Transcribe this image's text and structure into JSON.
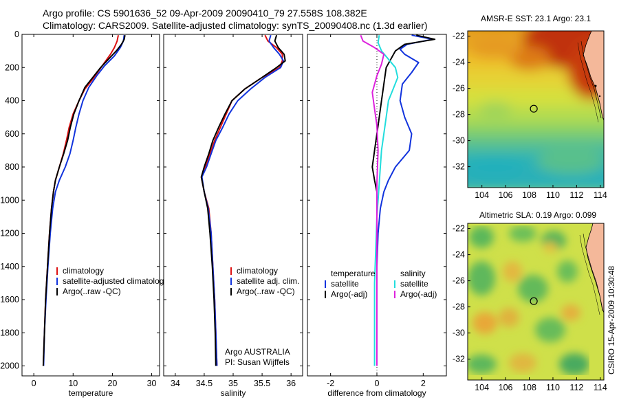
{
  "header": {
    "title_line1": "Argo profile: CS 5901636_52 09-Apr-2009 20090410_79 27.558S 108.382E",
    "title_line2": "Climatology: CARS2009. Satellite-adjusted climatology: synTS_20090408.nc (1.3d earlier)"
  },
  "footer": {
    "credit": "CSIRO 15-Apr-2009 10:30:48",
    "argo_group": "Argo AUSTRALIA",
    "pi": "PI: Susan Wijffels"
  },
  "colors": {
    "climatology": "#dd1111",
    "satellite": "#1133dd",
    "argo": "#000000",
    "sal_satellite": "#22dddd",
    "sal_argo": "#dd22dd",
    "zero_line": "#000000"
  },
  "chart_data": [
    {
      "type": "line",
      "id": "temperature",
      "title": "",
      "xlabel": "temperature",
      "ylabel": "",
      "xlim": [
        -3,
        32
      ],
      "ylim": [
        2060,
        0
      ],
      "xticks": [
        0,
        10,
        20,
        30
      ],
      "yticks": [
        0,
        200,
        400,
        600,
        800,
        1000,
        1200,
        1400,
        1600,
        1800,
        2000
      ],
      "legend": [
        "climatology",
        "satellite-adjusted climatology",
        "Argo(..raw -QC)"
      ],
      "series": [
        {
          "name": "climatology",
          "color_key": "climatology",
          "points": [
            [
              21.5,
              5
            ],
            [
              21.2,
              40
            ],
            [
              20.5,
              80
            ],
            [
              19.5,
              120
            ],
            [
              18.0,
              170
            ],
            [
              16.5,
              220
            ],
            [
              15.0,
              270
            ],
            [
              13.0,
              330
            ],
            [
              11.5,
              400
            ],
            [
              10.0,
              480
            ],
            [
              9.0,
              560
            ],
            [
              8.3,
              640
            ],
            [
              7.5,
              720
            ],
            [
              6.5,
              800
            ],
            [
              5.5,
              880
            ],
            [
              5.0,
              950
            ],
            [
              4.5,
              1050
            ],
            [
              4.0,
              1200
            ],
            [
              3.5,
              1400
            ],
            [
              3.0,
              1600
            ],
            [
              2.7,
              1800
            ],
            [
              2.4,
              2000
            ]
          ]
        },
        {
          "name": "satellite-adjusted climatology",
          "color_key": "satellite",
          "points": [
            [
              23.0,
              5
            ],
            [
              22.8,
              40
            ],
            [
              22.0,
              80
            ],
            [
              20.5,
              130
            ],
            [
              18.0,
              190
            ],
            [
              16.0,
              250
            ],
            [
              14.0,
              320
            ],
            [
              12.5,
              400
            ],
            [
              11.5,
              480
            ],
            [
              10.7,
              560
            ],
            [
              10.0,
              640
            ],
            [
              9.2,
              720
            ],
            [
              8.0,
              800
            ],
            [
              6.5,
              880
            ],
            [
              5.5,
              950
            ],
            [
              4.8,
              1050
            ],
            [
              4.2,
              1200
            ],
            [
              3.6,
              1400
            ],
            [
              3.1,
              1600
            ],
            [
              2.7,
              1800
            ],
            [
              2.5,
              2000
            ]
          ]
        },
        {
          "name": "Argo(..raw -QC)",
          "color_key": "argo",
          "points": [
            [
              23.2,
              5
            ],
            [
              23.0,
              30
            ],
            [
              22.3,
              60
            ],
            [
              21.0,
              100
            ],
            [
              19.0,
              150
            ],
            [
              17.0,
              200
            ],
            [
              15.0,
              260
            ],
            [
              13.0,
              320
            ],
            [
              11.5,
              400
            ],
            [
              10.2,
              480
            ],
            [
              9.3,
              560
            ],
            [
              8.6,
              640
            ],
            [
              7.6,
              720
            ],
            [
              6.5,
              800
            ],
            [
              5.5,
              880
            ],
            [
              5.0,
              950
            ],
            [
              4.5,
              1050
            ],
            [
              4.0,
              1200
            ],
            [
              3.5,
              1400
            ],
            [
              3.0,
              1600
            ],
            [
              2.7,
              1800
            ],
            [
              2.4,
              2000
            ]
          ]
        }
      ]
    },
    {
      "type": "line",
      "id": "salinity",
      "title": "",
      "xlabel": "salinity",
      "ylabel": "",
      "xlim": [
        33.8,
        36.2
      ],
      "ylim": [
        2060,
        0
      ],
      "xticks": [
        34,
        34.5,
        35,
        35.5,
        36
      ],
      "yticks": [
        0,
        200,
        400,
        600,
        800,
        1000,
        1200,
        1400,
        1600,
        1800,
        2000
      ],
      "legend": [
        "climatology",
        "satellite adj. clim.",
        "Argo(..raw -QC)"
      ],
      "series": [
        {
          "name": "climatology",
          "color_key": "climatology",
          "points": [
            [
              35.55,
              5
            ],
            [
              35.6,
              40
            ],
            [
              35.75,
              80
            ],
            [
              35.85,
              120
            ],
            [
              35.85,
              160
            ],
            [
              35.8,
              200
            ],
            [
              35.5,
              260
            ],
            [
              35.2,
              330
            ],
            [
              34.98,
              400
            ],
            [
              34.88,
              480
            ],
            [
              34.78,
              560
            ],
            [
              34.68,
              640
            ],
            [
              34.6,
              720
            ],
            [
              34.52,
              800
            ],
            [
              34.45,
              860
            ],
            [
              34.5,
              950
            ],
            [
              34.58,
              1050
            ],
            [
              34.62,
              1200
            ],
            [
              34.65,
              1400
            ],
            [
              34.68,
              1600
            ],
            [
              34.7,
              1800
            ],
            [
              34.72,
              2000
            ]
          ]
        },
        {
          "name": "satellite adj. clim.",
          "color_key": "satellite",
          "points": [
            [
              35.65,
              5
            ],
            [
              35.62,
              40
            ],
            [
              35.7,
              80
            ],
            [
              35.8,
              120
            ],
            [
              35.87,
              160
            ],
            [
              35.82,
              200
            ],
            [
              35.55,
              260
            ],
            [
              35.3,
              330
            ],
            [
              35.08,
              400
            ],
            [
              34.93,
              480
            ],
            [
              34.82,
              560
            ],
            [
              34.7,
              640
            ],
            [
              34.62,
              720
            ],
            [
              34.54,
              800
            ],
            [
              34.46,
              860
            ],
            [
              34.5,
              950
            ],
            [
              34.57,
              1050
            ],
            [
              34.62,
              1200
            ],
            [
              34.65,
              1400
            ],
            [
              34.68,
              1600
            ],
            [
              34.7,
              1800
            ],
            [
              34.72,
              2000
            ]
          ]
        },
        {
          "name": "Argo(..raw -QC)",
          "color_key": "argo",
          "points": [
            [
              35.75,
              5
            ],
            [
              35.72,
              40
            ],
            [
              35.78,
              80
            ],
            [
              35.88,
              120
            ],
            [
              35.9,
              160
            ],
            [
              35.75,
              200
            ],
            [
              35.5,
              260
            ],
            [
              35.2,
              330
            ],
            [
              34.98,
              400
            ],
            [
              34.86,
              480
            ],
            [
              34.75,
              560
            ],
            [
              34.65,
              640
            ],
            [
              34.58,
              720
            ],
            [
              34.5,
              800
            ],
            [
              34.45,
              860
            ],
            [
              34.5,
              950
            ],
            [
              34.56,
              1050
            ],
            [
              34.6,
              1200
            ],
            [
              34.64,
              1400
            ],
            [
              34.67,
              1600
            ],
            [
              34.69,
              1800
            ],
            [
              34.7,
              2000
            ]
          ]
        }
      ]
    },
    {
      "type": "line",
      "id": "difference",
      "title": "",
      "xlabel": "difference from climatology",
      "ylabel": "",
      "xlim": [
        -3,
        3
      ],
      "ylim": [
        2060,
        0
      ],
      "xticks": [
        -2,
        0,
        2
      ],
      "yticks": [
        0,
        200,
        400,
        600,
        800,
        1000,
        1200,
        1400,
        1600,
        1800,
        2000
      ],
      "legend_temperature_header": "temperature",
      "legend_salinity_header": "salinity",
      "legend": [
        "satellite",
        "Argo(-adj)",
        "satellite",
        "Argo(-adj)"
      ],
      "series": [
        {
          "name": "temperature satellite",
          "color_key": "satellite",
          "points": [
            [
              1.5,
              5
            ],
            [
              2.4,
              30
            ],
            [
              1.3,
              60
            ],
            [
              1.0,
              90
            ],
            [
              1.2,
              120
            ],
            [
              1.8,
              170
            ],
            [
              1.5,
              230
            ],
            [
              1.1,
              300
            ],
            [
              1.0,
              400
            ],
            [
              1.2,
              500
            ],
            [
              1.5,
              600
            ],
            [
              1.4,
              700
            ],
            [
              0.8,
              800
            ],
            [
              0.5,
              880
            ],
            [
              0.3,
              950
            ],
            [
              0.15,
              1050
            ],
            [
              0.05,
              1200
            ],
            [
              0.0,
              1400
            ],
            [
              0.0,
              1600
            ],
            [
              0.0,
              2000
            ]
          ]
        },
        {
          "name": "temperature Argo(-adj)",
          "color_key": "argo",
          "points": [
            [
              1.7,
              5
            ],
            [
              2.5,
              30
            ],
            [
              1.2,
              60
            ],
            [
              0.8,
              100
            ],
            [
              0.6,
              150
            ],
            [
              0.4,
              200
            ],
            [
              0.3,
              300
            ],
            [
              0.2,
              400
            ],
            [
              0.1,
              500
            ],
            [
              0.0,
              600
            ],
            [
              -0.1,
              700
            ],
            [
              -0.2,
              800
            ],
            [
              -0.1,
              880
            ],
            [
              0.0,
              950
            ],
            [
              0.0,
              1200
            ],
            [
              0.0,
              1600
            ],
            [
              0.0,
              2000
            ]
          ]
        },
        {
          "name": "salinity satellite",
          "color_key": "sal_satellite",
          "points": [
            [
              0.1,
              5
            ],
            [
              0.05,
              50
            ],
            [
              0.2,
              100
            ],
            [
              0.5,
              150
            ],
            [
              0.8,
              200
            ],
            [
              0.9,
              260
            ],
            [
              0.7,
              330
            ],
            [
              0.5,
              400
            ],
            [
              0.4,
              500
            ],
            [
              0.3,
              600
            ],
            [
              0.2,
              700
            ],
            [
              0.15,
              800
            ],
            [
              0.1,
              900
            ],
            [
              0.05,
              1000
            ],
            [
              0.0,
              1100
            ],
            [
              -0.05,
              1300
            ],
            [
              -0.1,
              1500
            ],
            [
              -0.1,
              1700
            ],
            [
              -0.1,
              2000
            ]
          ]
        },
        {
          "name": "salinity Argo(-adj)",
          "color_key": "sal_argo",
          "points": [
            [
              -0.7,
              5
            ],
            [
              -0.6,
              40
            ],
            [
              -0.1,
              80
            ],
            [
              0.3,
              120
            ],
            [
              0.2,
              180
            ],
            [
              0.0,
              250
            ],
            [
              -0.2,
              350
            ],
            [
              -0.1,
              450
            ],
            [
              0.0,
              550
            ],
            [
              0.05,
              700
            ],
            [
              0.0,
              900
            ],
            [
              0.0,
              1200
            ],
            [
              0.0,
              1600
            ],
            [
              0.0,
              2000
            ]
          ]
        }
      ]
    },
    {
      "type": "heatmap",
      "id": "sst_map",
      "title": "AMSR-E SST: 23.1 Argo: 23.1",
      "xlabel": "",
      "ylabel": "",
      "xlim": [
        102.8,
        114.3
      ],
      "ylim": [
        -33.6,
        -21.6
      ],
      "xticks": [
        104,
        106,
        108,
        110,
        112,
        114
      ],
      "yticks": [
        -22,
        -24,
        -26,
        -28,
        -30,
        -32
      ],
      "marker": {
        "lon": 108.382,
        "lat": -27.558
      }
    },
    {
      "type": "heatmap",
      "id": "sla_map",
      "title": "Altimetric SLA: 0.19 Argo: 0.099",
      "xlabel": "",
      "ylabel": "",
      "xlim": [
        102.8,
        114.3
      ],
      "ylim": [
        -33.6,
        -21.6
      ],
      "xticks": [
        104,
        106,
        108,
        110,
        112,
        114
      ],
      "yticks": [
        -22,
        -24,
        -26,
        -28,
        -30,
        -32
      ],
      "marker": {
        "lon": 108.382,
        "lat": -27.558
      }
    }
  ]
}
